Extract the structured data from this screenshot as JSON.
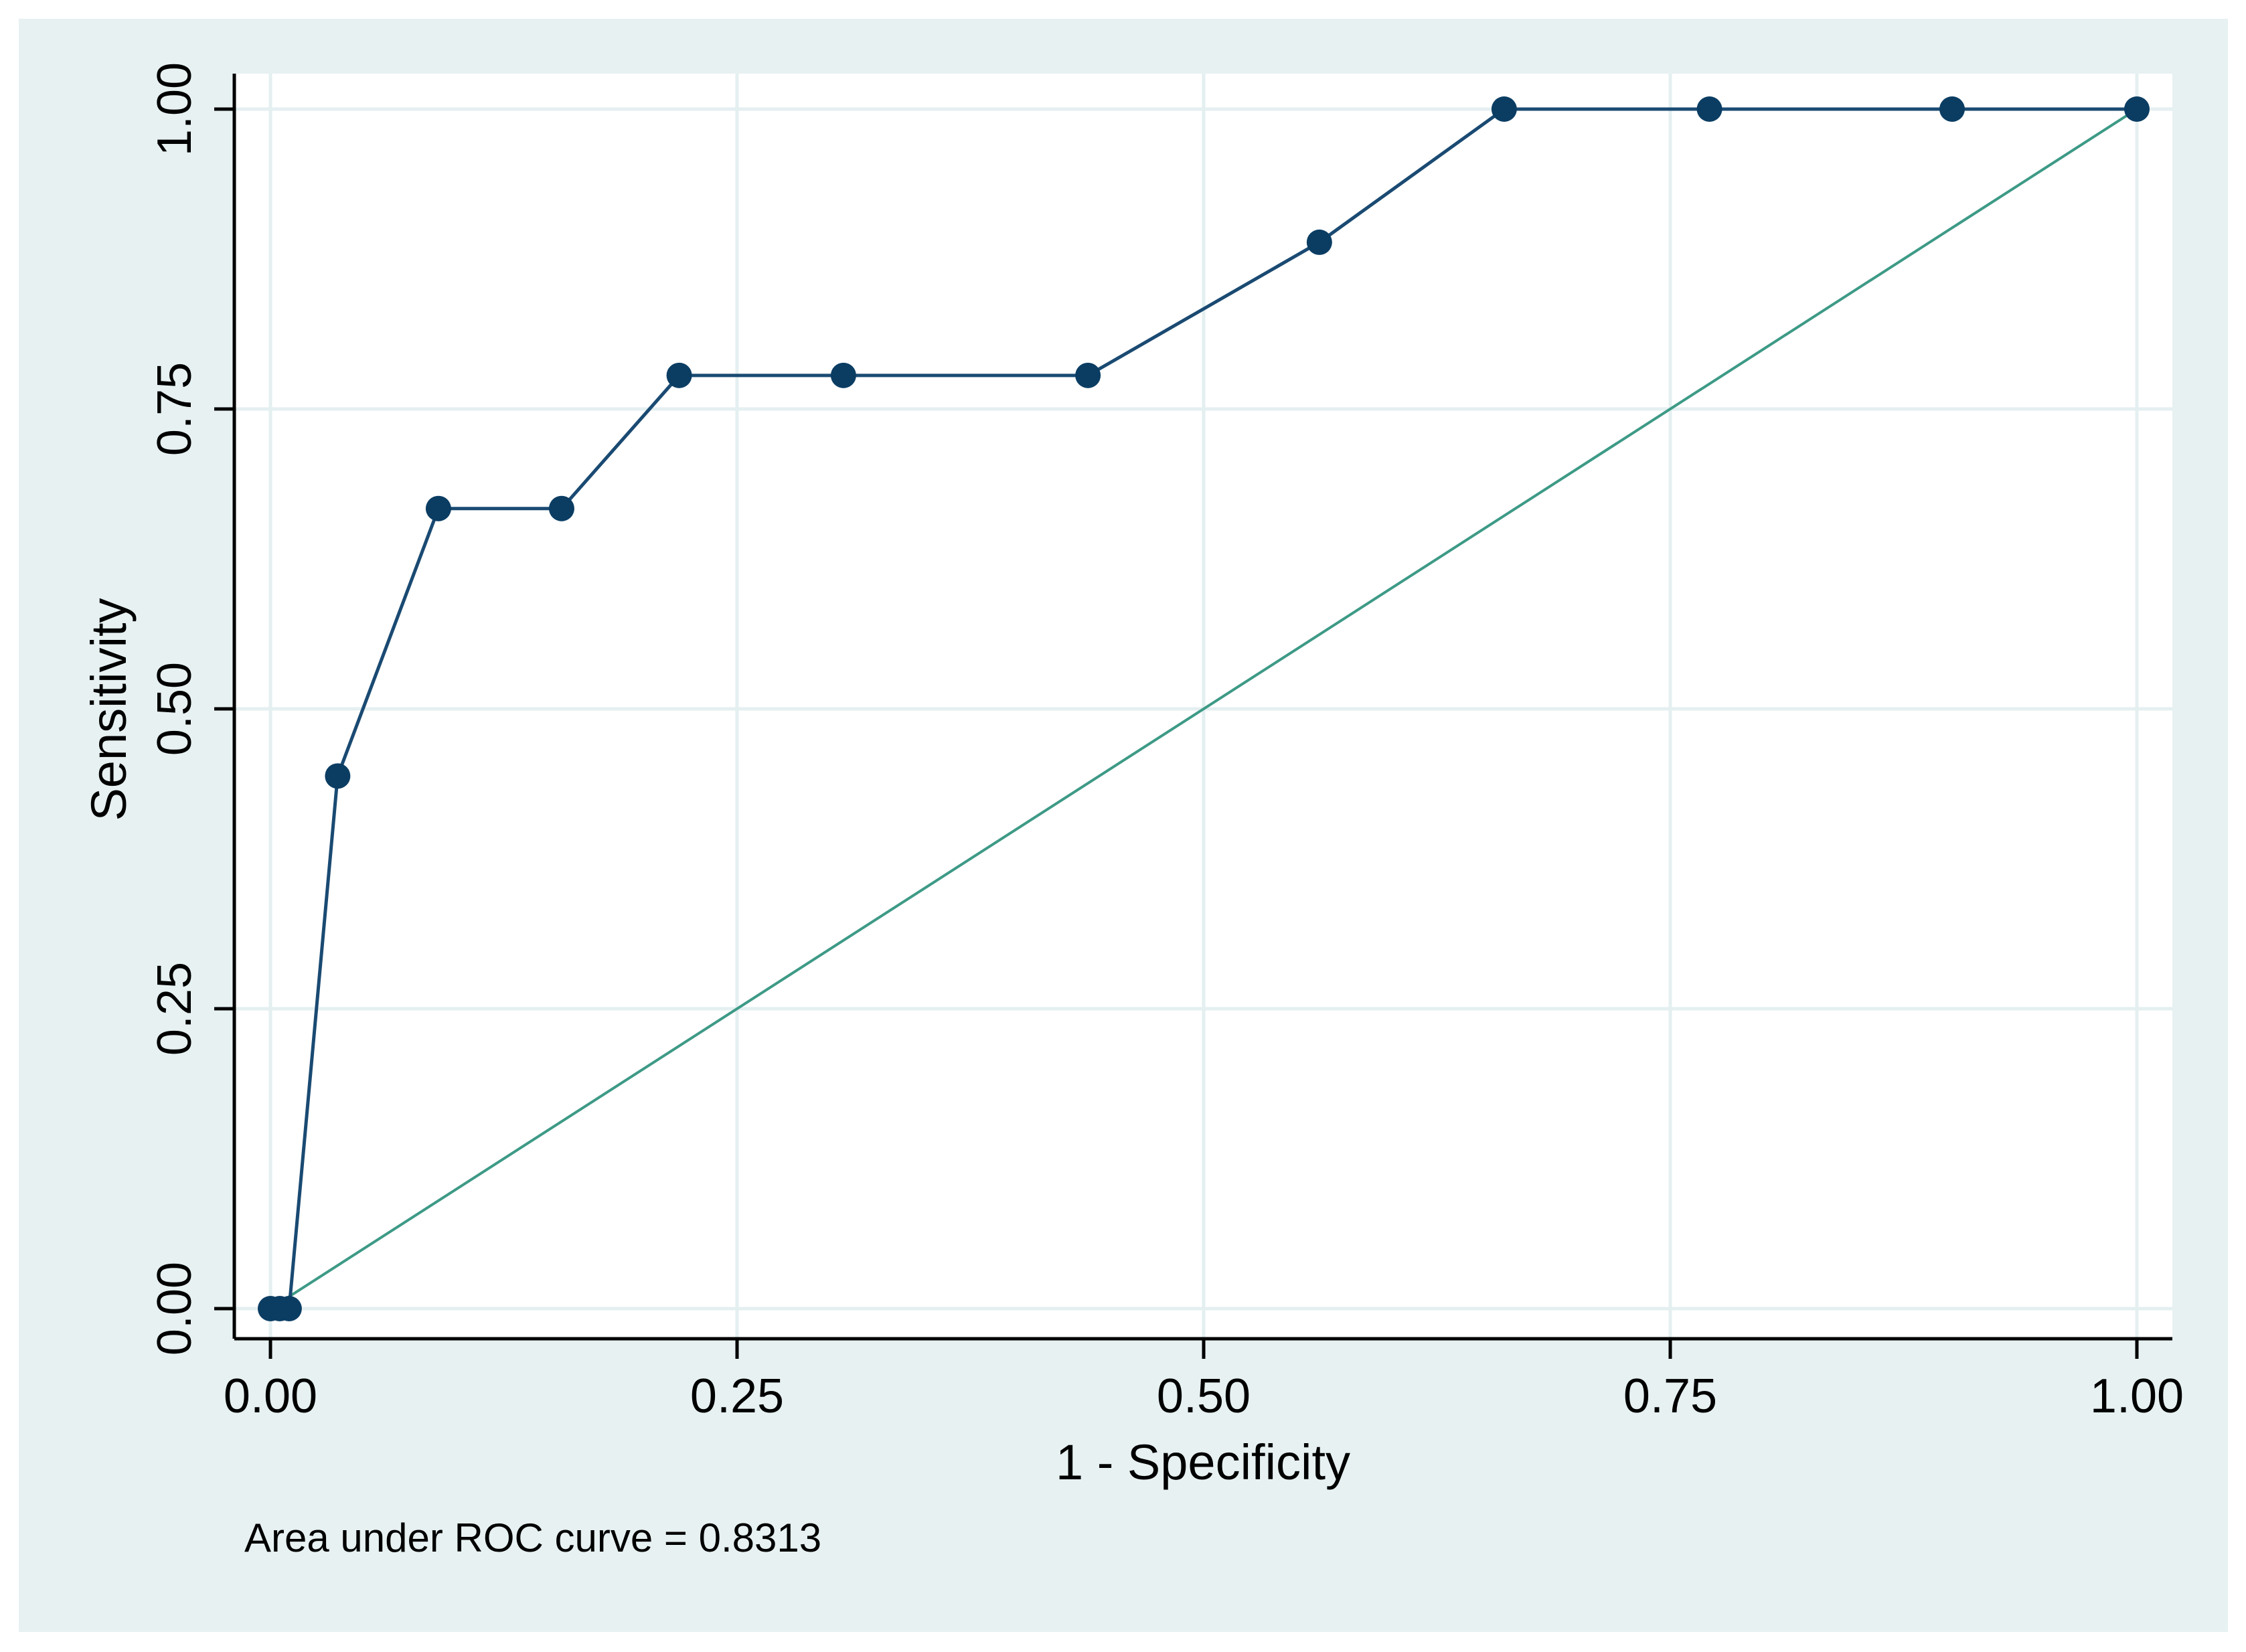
{
  "chart_data": {
    "type": "line",
    "xlabel": "1 - Specificity",
    "ylabel": "Sensitivity",
    "annotation": "Area under ROC curve = 0.8313",
    "xlim": [
      0,
      1
    ],
    "ylim": [
      0,
      1
    ],
    "xticks": [
      "0.00",
      "0.25",
      "0.50",
      "0.75",
      "1.00"
    ],
    "yticks": [
      "0.00",
      "0.25",
      "0.50",
      "0.75",
      "1.00"
    ],
    "grid": true,
    "series": [
      {
        "points": [
          [
            0.0,
            0.0
          ],
          [
            0.005,
            0.0
          ],
          [
            0.01,
            0.0
          ],
          [
            0.036,
            0.444
          ],
          [
            0.09,
            0.667
          ],
          [
            0.156,
            0.667
          ],
          [
            0.219,
            0.778
          ],
          [
            0.307,
            0.778
          ],
          [
            0.438,
            0.778
          ],
          [
            0.562,
            0.889
          ],
          [
            0.661,
            1.0
          ],
          [
            0.771,
            1.0
          ],
          [
            0.901,
            1.0
          ],
          [
            1.0,
            1.0
          ]
        ],
        "markers": true,
        "color": "#1a4a72"
      },
      {
        "points": [
          [
            0,
            0
          ],
          [
            1,
            1
          ]
        ],
        "markers": false,
        "color": "#3d9a86"
      }
    ],
    "colors": {
      "outer_background": "#e7f1f2",
      "plot_background": "#ffffff",
      "gridline": "#e4eff0",
      "axis": "#000000",
      "roc_marker": "#0b3d63"
    }
  }
}
